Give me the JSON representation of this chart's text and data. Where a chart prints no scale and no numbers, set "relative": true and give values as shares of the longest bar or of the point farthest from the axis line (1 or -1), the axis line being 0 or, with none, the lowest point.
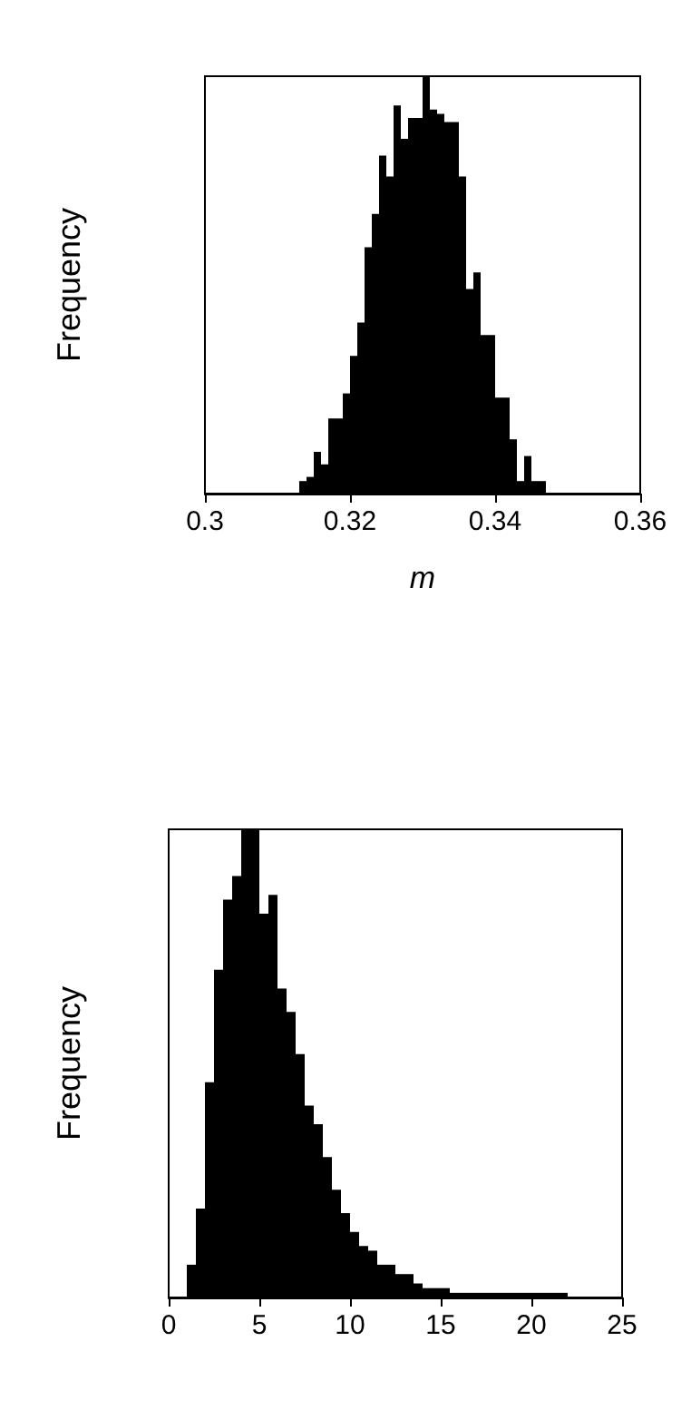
{
  "chart_data": [
    {
      "type": "bar",
      "xlabel": "m",
      "ylabel": "Frequency",
      "relative": true,
      "color": "#000000",
      "x": [
        0.3135,
        0.3145,
        0.3155,
        0.3165,
        0.3175,
        0.3185,
        0.3195,
        0.3205,
        0.3215,
        0.3225,
        0.3235,
        0.3245,
        0.3255,
        0.3265,
        0.3275,
        0.3285,
        0.3295,
        0.3305,
        0.3315,
        0.3325,
        0.3335,
        0.3345,
        0.3355,
        0.3365,
        0.3375,
        0.3385,
        0.3395,
        0.3405,
        0.3415,
        0.3425,
        0.3435,
        0.3445,
        0.3455,
        0.3465
      ],
      "values": [
        0.03,
        0.04,
        0.1,
        0.07,
        0.18,
        0.18,
        0.24,
        0.33,
        0.41,
        0.59,
        0.67,
        0.81,
        0.76,
        0.93,
        0.85,
        0.9,
        0.9,
        1,
        0.92,
        0.91,
        0.89,
        0.89,
        0.76,
        0.49,
        0.53,
        0.38,
        0.38,
        0.23,
        0.23,
        0.13,
        0.03,
        0.09,
        0.03,
        0.03
      ],
      "xlim": [
        0.3,
        0.36
      ],
      "xticks": [
        0.3,
        0.32,
        0.34,
        0.36
      ]
    },
    {
      "type": "bar",
      "ylabel": "Frequency",
      "relative": true,
      "color": "#000000",
      "x": [
        1.25,
        1.75,
        2.25,
        2.75,
        3.25,
        3.75,
        4.25,
        4.75,
        5.25,
        5.75,
        6.25,
        6.75,
        7.25,
        7.75,
        8.25,
        8.75,
        9.25,
        9.75,
        10.25,
        10.75,
        11.25,
        11.75,
        12.25,
        12.75,
        13.25,
        13.75,
        14.25,
        14.75,
        15.25,
        15.75,
        16.25,
        16.75,
        17.25,
        17.75,
        18.25,
        18.75,
        19.25,
        19.75,
        20.25,
        20.75,
        21.25,
        21.75
      ],
      "values": [
        0.07,
        0.19,
        0.46,
        0.7,
        0.85,
        0.9,
        1,
        1,
        0.82,
        0.86,
        0.66,
        0.61,
        0.52,
        0.41,
        0.37,
        0.3,
        0.23,
        0.18,
        0.14,
        0.11,
        0.1,
        0.07,
        0.07,
        0.05,
        0.05,
        0.03,
        0.02,
        0.02,
        0.02,
        0.01,
        0.01,
        0.01,
        0.01,
        0.01,
        0.01,
        0.01,
        0.01,
        0.01,
        0.01,
        0.01,
        0.01,
        0.01
      ],
      "xlim": [
        0,
        25
      ],
      "xticks": [
        0,
        5,
        10,
        15,
        20,
        25
      ]
    }
  ]
}
